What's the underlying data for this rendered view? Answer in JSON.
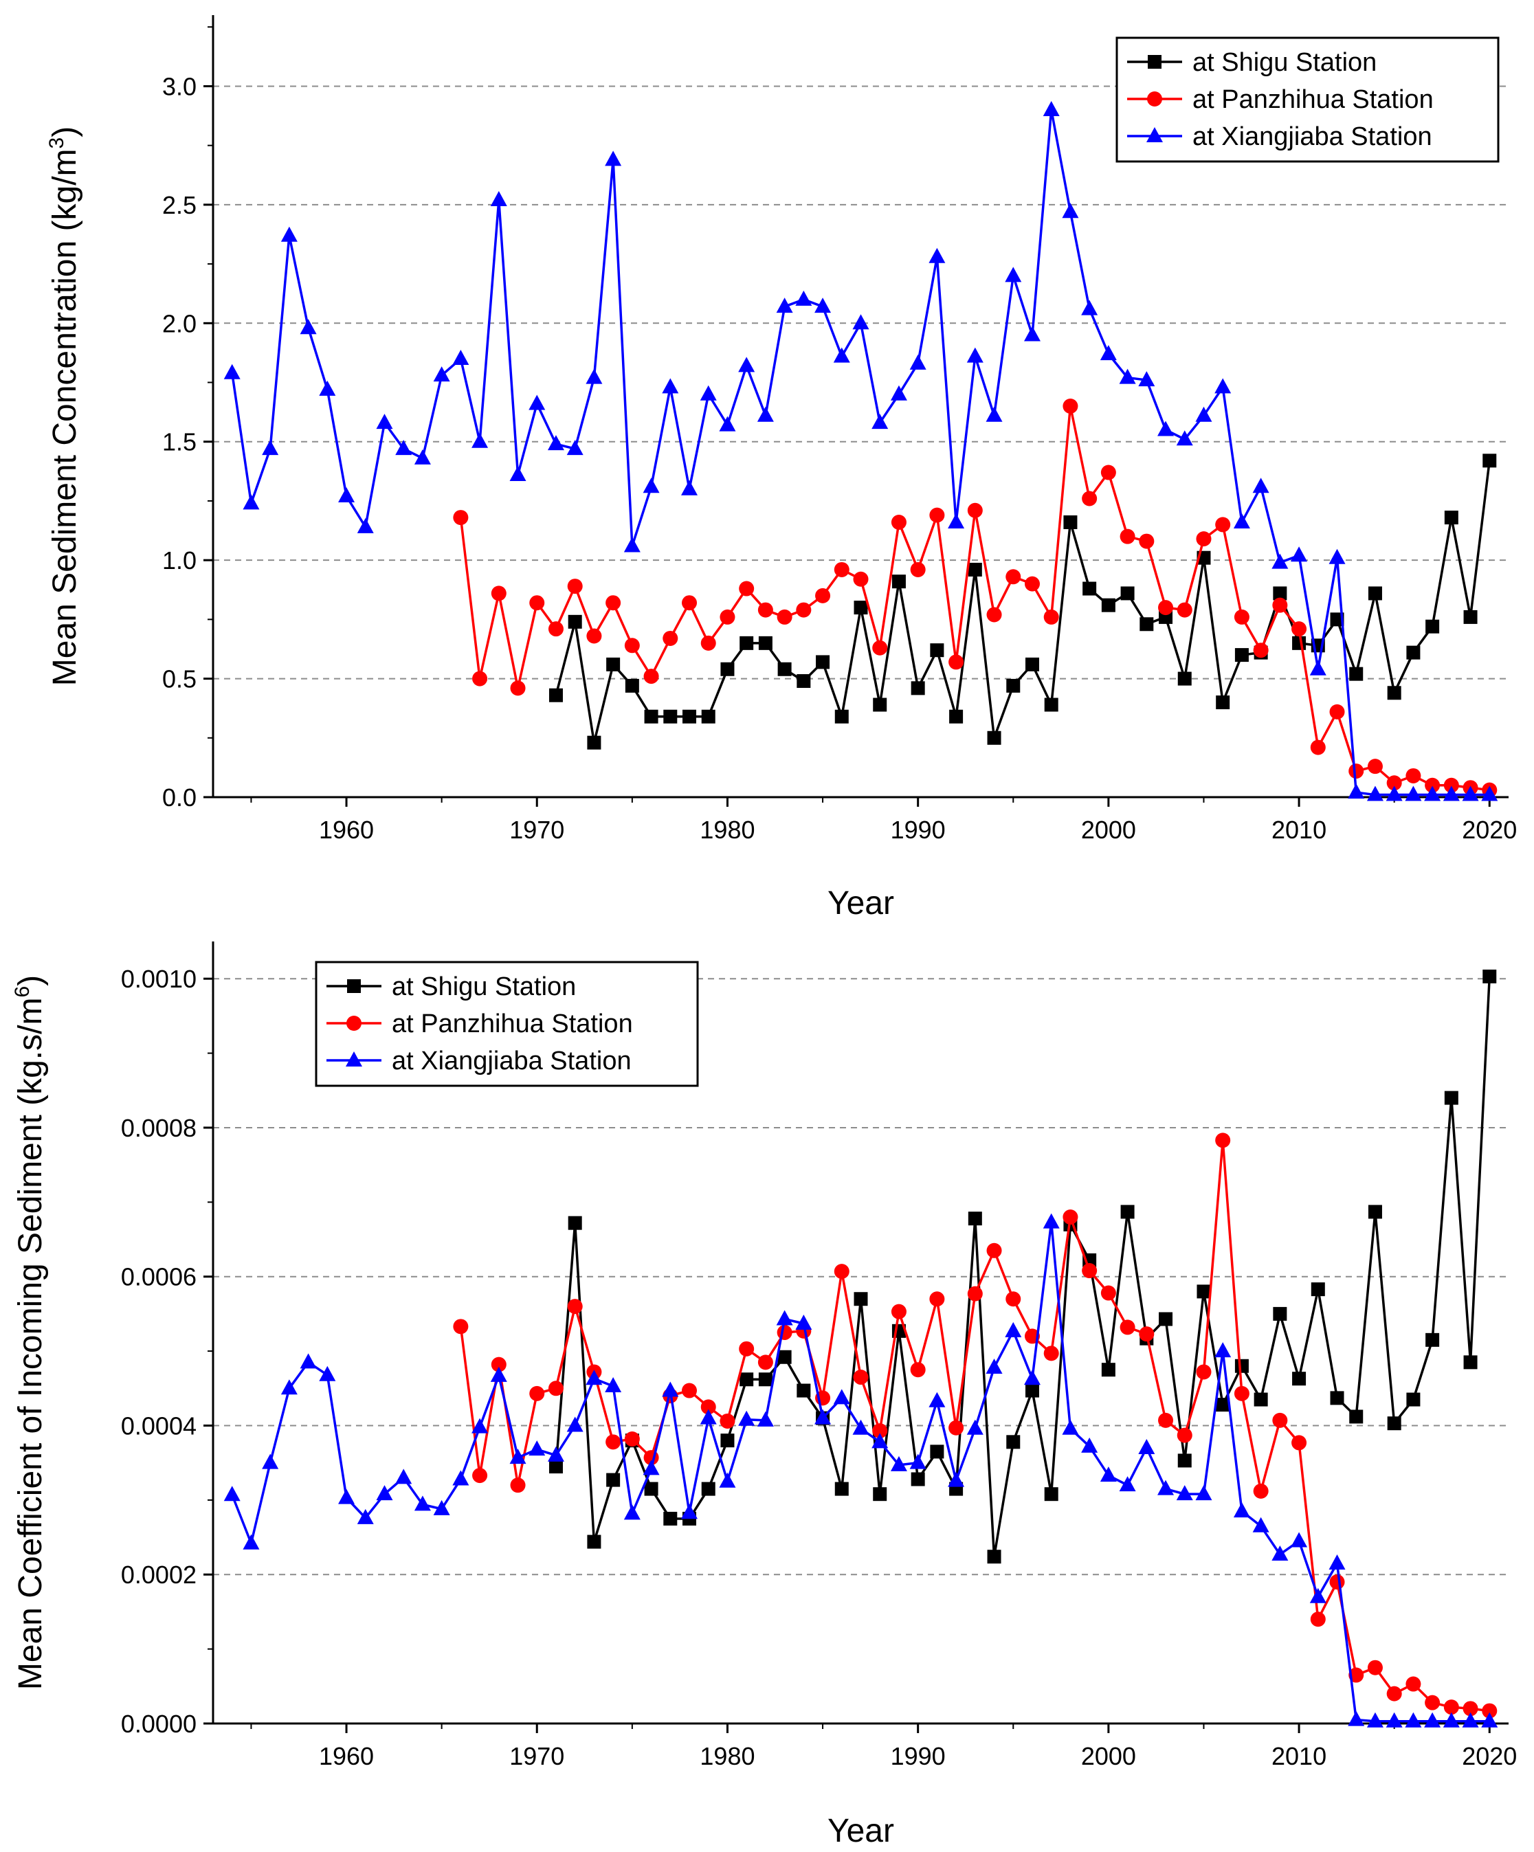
{
  "chart_data": [
    {
      "type": "line",
      "title": "",
      "xlabel": "Year",
      "ylabel": "Mean Sediment Concentration (kg/m3)",
      "ylabel_parts": [
        "Mean Sediment Concentration (kg/m",
        "3",
        ")"
      ],
      "xlim": [
        1953,
        2021
      ],
      "ylim": [
        0,
        3.3
      ],
      "xticks": [
        1960,
        1970,
        1980,
        1990,
        2000,
        2010,
        2020
      ],
      "xtick_labels": [
        "1960",
        "1970",
        "1980",
        "1990",
        "2000",
        "2010",
        "2020"
      ],
      "yticks": [
        0,
        0.5,
        1.0,
        1.5,
        2.0,
        2.5,
        3.0
      ],
      "ytick_labels": [
        "0.0",
        "0.5",
        "1.0",
        "1.5",
        "2.0",
        "2.5",
        "3.0"
      ],
      "grid": "horizontal dashed",
      "legend_position": "top-right",
      "series": [
        {
          "name": "at Shigu Station",
          "color": "#000000",
          "marker": "square",
          "x": [
            1971,
            1972,
            1973,
            1974,
            1975,
            1976,
            1977,
            1978,
            1979,
            1980,
            1981,
            1982,
            1983,
            1984,
            1985,
            1986,
            1987,
            1988,
            1989,
            1990,
            1991,
            1992,
            1993,
            1994,
            1995,
            1996,
            1997,
            1998,
            1999,
            2000,
            2001,
            2002,
            2003,
            2004,
            2005,
            2006,
            2007,
            2008,
            2009,
            2010,
            2011,
            2012,
            2013,
            2014,
            2015,
            2016,
            2017,
            2018,
            2019,
            2020
          ],
          "y": [
            0.43,
            0.74,
            0.23,
            0.56,
            0.47,
            0.34,
            0.34,
            0.34,
            0.34,
            0.54,
            0.65,
            0.65,
            0.54,
            0.49,
            0.57,
            0.34,
            0.8,
            0.39,
            0.91,
            0.46,
            0.62,
            0.34,
            0.96,
            0.25,
            0.47,
            0.56,
            0.39,
            1.16,
            0.88,
            0.81,
            0.86,
            0.73,
            0.76,
            0.5,
            1.01,
            0.4,
            0.6,
            0.61,
            0.86,
            0.65,
            0.64,
            0.75,
            0.52,
            0.86,
            0.44,
            0.61,
            0.72,
            1.18,
            0.76,
            1.42
          ]
        },
        {
          "name": "at Panzhihua Station",
          "color": "#ff0000",
          "marker": "circle",
          "x": [
            1966,
            1967,
            1968,
            1969,
            1970,
            1971,
            1972,
            1973,
            1974,
            1975,
            1976,
            1977,
            1978,
            1979,
            1980,
            1981,
            1982,
            1983,
            1984,
            1985,
            1986,
            1987,
            1988,
            1989,
            1990,
            1991,
            1992,
            1993,
            1994,
            1995,
            1996,
            1997,
            1998,
            1999,
            2000,
            2001,
            2002,
            2003,
            2004,
            2005,
            2006,
            2007,
            2008,
            2009,
            2010,
            2011,
            2012,
            2013,
            2014,
            2015,
            2016,
            2017,
            2018,
            2019,
            2020
          ],
          "y": [
            1.18,
            0.5,
            0.86,
            0.46,
            0.82,
            0.71,
            0.89,
            0.68,
            0.82,
            0.64,
            0.51,
            0.67,
            0.82,
            0.65,
            0.76,
            0.88,
            0.79,
            0.76,
            0.79,
            0.85,
            0.96,
            0.92,
            0.63,
            1.16,
            0.96,
            1.19,
            0.57,
            1.21,
            0.77,
            0.93,
            0.9,
            0.76,
            1.65,
            1.26,
            1.37,
            1.1,
            1.08,
            0.8,
            0.79,
            1.09,
            1.15,
            0.76,
            0.62,
            0.81,
            0.71,
            0.21,
            0.36,
            0.11,
            0.13,
            0.06,
            0.09,
            0.05,
            0.05,
            0.04,
            0.03
          ]
        },
        {
          "name": "at Xiangjiaba Station",
          "color": "#0000ff",
          "marker": "triangle",
          "x": [
            1954,
            1955,
            1956,
            1957,
            1958,
            1959,
            1960,
            1961,
            1962,
            1963,
            1964,
            1965,
            1966,
            1967,
            1968,
            1969,
            1970,
            1971,
            1972,
            1973,
            1974,
            1975,
            1976,
            1977,
            1978,
            1979,
            1980,
            1981,
            1982,
            1983,
            1984,
            1985,
            1986,
            1987,
            1988,
            1989,
            1990,
            1991,
            1992,
            1993,
            1994,
            1995,
            1996,
            1997,
            1998,
            1999,
            2000,
            2001,
            2002,
            2003,
            2004,
            2005,
            2006,
            2007,
            2008,
            2009,
            2010,
            2011,
            2012,
            2013,
            2014,
            2015,
            2016,
            2017,
            2018,
            2019,
            2020
          ],
          "y": [
            1.79,
            1.24,
            1.47,
            2.37,
            1.98,
            1.72,
            1.27,
            1.14,
            1.58,
            1.47,
            1.43,
            1.78,
            1.85,
            1.5,
            2.52,
            1.36,
            1.66,
            1.49,
            1.47,
            1.77,
            2.69,
            1.06,
            1.31,
            1.73,
            1.3,
            1.7,
            1.57,
            1.82,
            1.61,
            2.07,
            2.1,
            2.07,
            1.86,
            2.0,
            1.58,
            1.7,
            1.83,
            2.28,
            1.16,
            1.86,
            1.61,
            2.2,
            1.95,
            2.9,
            2.47,
            2.06,
            1.87,
            1.77,
            1.76,
            1.55,
            1.51,
            1.61,
            1.73,
            1.16,
            1.31,
            0.99,
            1.02,
            0.54,
            1.01,
            0.02,
            0.01,
            0.01,
            0.01,
            0.01,
            0.01,
            0.01,
            0.01
          ]
        }
      ]
    },
    {
      "type": "line",
      "title": "",
      "xlabel": "Year",
      "ylabel": "Mean Coefficient of Incoming Sediment (kg.s/m6)",
      "ylabel_parts": [
        "Mean Coefficient of Incoming Sediment (kg.s/m",
        "6",
        ")"
      ],
      "xlim": [
        1953,
        2021
      ],
      "ylim": [
        0,
        0.00105
      ],
      "xticks": [
        1960,
        1970,
        1980,
        1990,
        2000,
        2010,
        2020
      ],
      "xtick_labels": [
        "1960",
        "1970",
        "1980",
        "1990",
        "2000",
        "2010",
        "2020"
      ],
      "yticks": [
        0,
        0.0002,
        0.0004,
        0.0006,
        0.0008,
        0.001
      ],
      "ytick_labels": [
        "0.0000",
        "0.0002",
        "0.0004",
        "0.0006",
        "0.0008",
        "0.0010"
      ],
      "grid": "horizontal dashed",
      "legend_position": "top-left",
      "series": [
        {
          "name": "at Shigu Station",
          "color": "#000000",
          "marker": "square",
          "x": [
            1971,
            1972,
            1973,
            1974,
            1975,
            1976,
            1977,
            1978,
            1979,
            1980,
            1981,
            1982,
            1983,
            1984,
            1985,
            1986,
            1987,
            1988,
            1989,
            1990,
            1991,
            1992,
            1993,
            1994,
            1995,
            1996,
            1997,
            1998,
            1999,
            2000,
            2001,
            2002,
            2003,
            2004,
            2005,
            2006,
            2007,
            2008,
            2009,
            2010,
            2011,
            2012,
            2013,
            2014,
            2015,
            2016,
            2017,
            2018,
            2019,
            2020
          ],
          "y": [
            0.000345,
            0.000672,
            0.000244,
            0.000327,
            0.00038,
            0.000315,
            0.000275,
            0.000275,
            0.000315,
            0.00038,
            0.000462,
            0.000462,
            0.000492,
            0.000447,
            0.00041,
            0.000315,
            0.00057,
            0.000308,
            0.000527,
            0.000328,
            0.000365,
            0.000315,
            0.000678,
            0.000224,
            0.000378,
            0.000447,
            0.000308,
            0.00067,
            0.000622,
            0.000475,
            0.000687,
            0.000517,
            0.000543,
            0.000353,
            0.00058,
            0.000428,
            0.00048,
            0.000435,
            0.00055,
            0.000463,
            0.000583,
            0.000437,
            0.000412,
            0.000687,
            0.000403,
            0.000435,
            0.000515,
            0.00084,
            0.000485,
            0.001003
          ]
        },
        {
          "name": "at Panzhihua Station",
          "color": "#ff0000",
          "marker": "circle",
          "x": [
            1966,
            1967,
            1968,
            1969,
            1970,
            1971,
            1972,
            1973,
            1974,
            1975,
            1976,
            1977,
            1978,
            1979,
            1980,
            1981,
            1982,
            1983,
            1984,
            1985,
            1986,
            1987,
            1988,
            1989,
            1990,
            1991,
            1992,
            1993,
            1994,
            1995,
            1996,
            1997,
            1998,
            1999,
            2000,
            2001,
            2002,
            2003,
            2004,
            2005,
            2006,
            2007,
            2008,
            2009,
            2010,
            2011,
            2012,
            2013,
            2014,
            2015,
            2016,
            2017,
            2018,
            2019,
            2020
          ],
          "y": [
            0.000533,
            0.000333,
            0.000482,
            0.00032,
            0.000443,
            0.00045,
            0.00056,
            0.000472,
            0.000378,
            0.000382,
            0.000357,
            0.00044,
            0.000447,
            0.000425,
            0.000406,
            0.000503,
            0.000485,
            0.000525,
            0.000527,
            0.000437,
            0.000607,
            0.000465,
            0.000393,
            0.000553,
            0.000475,
            0.00057,
            0.000397,
            0.000577,
            0.000635,
            0.00057,
            0.00052,
            0.000497,
            0.00068,
            0.000608,
            0.000578,
            0.000532,
            0.000523,
            0.000407,
            0.000387,
            0.000472,
            0.000783,
            0.000443,
            0.000312,
            0.000407,
            0.000377,
            0.00014,
            0.00019,
            6.5e-05,
            7.5e-05,
            4e-05,
            5.3e-05,
            2.8e-05,
            2.2e-05,
            2e-05,
            1.7e-05
          ]
        },
        {
          "name": "at Xiangjiaba Station",
          "color": "#0000ff",
          "marker": "triangle",
          "x": [
            1954,
            1955,
            1956,
            1957,
            1958,
            1959,
            1960,
            1961,
            1962,
            1963,
            1964,
            1965,
            1966,
            1967,
            1968,
            1969,
            1970,
            1971,
            1972,
            1973,
            1974,
            1975,
            1976,
            1977,
            1978,
            1979,
            1980,
            1981,
            1982,
            1983,
            1984,
            1985,
            1986,
            1987,
            1988,
            1989,
            1990,
            1991,
            1992,
            1993,
            1994,
            1995,
            1996,
            1997,
            1998,
            1999,
            2000,
            2001,
            2002,
            2003,
            2004,
            2005,
            2006,
            2007,
            2008,
            2009,
            2010,
            2011,
            2012,
            2013,
            2014,
            2015,
            2016,
            2017,
            2018,
            2019,
            2020
          ],
          "y": [
            0.000307,
            0.000242,
            0.00035,
            0.00045,
            0.000485,
            0.000468,
            0.000303,
            0.000276,
            0.000308,
            0.00033,
            0.000294,
            0.000288,
            0.000328,
            0.000398,
            0.000467,
            0.000357,
            0.000368,
            0.00036,
            0.0004,
            0.000463,
            0.000453,
            0.000282,
            0.000342,
            0.000447,
            0.000283,
            0.00041,
            0.000325,
            0.000408,
            0.000407,
            0.000543,
            0.000537,
            0.00041,
            0.000437,
            0.000396,
            0.000378,
            0.000347,
            0.00035,
            0.000433,
            0.000326,
            0.000396,
            0.000478,
            0.000527,
            0.000463,
            0.000673,
            0.000396,
            0.000372,
            0.000333,
            0.00032,
            0.00037,
            0.000315,
            0.000308,
            0.000308,
            0.0005,
            0.000285,
            0.000265,
            0.000227,
            0.000245,
            0.00017,
            0.000215,
            5e-06,
            3e-06,
            3e-06,
            3e-06,
            3e-06,
            3e-06,
            3e-06,
            3e-06
          ]
        }
      ]
    }
  ]
}
